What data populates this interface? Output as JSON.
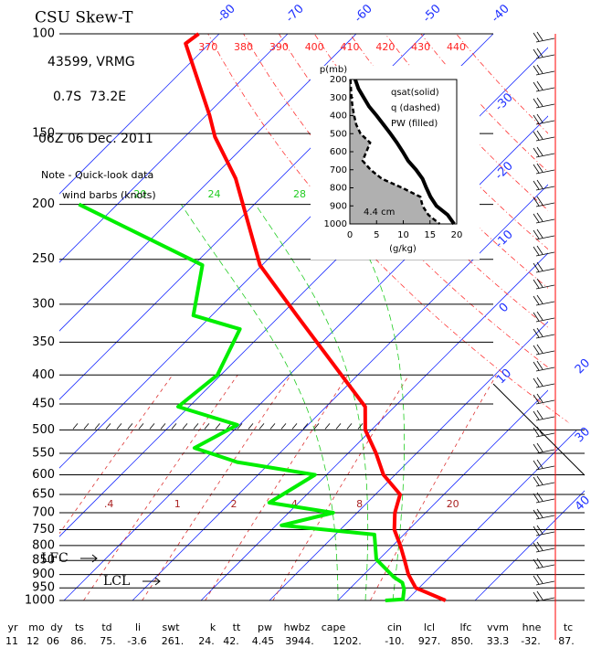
{
  "chart_data": [
    {
      "type": "skew-t",
      "title": "CSU Skew-T",
      "station": "43599, VRMG",
      "location": "0.7S  73.2E",
      "time": "06Z 06 Dec. 2011",
      "note": "Note - Quick-look data",
      "note2": "wind barbs (knots)",
      "lfc_label": "LFC",
      "lcl_label": "LCL",
      "log_y": true,
      "ylim": [
        100,
        1000
      ],
      "yticks": [
        100,
        150,
        200,
        250,
        300,
        350,
        400,
        450,
        500,
        550,
        600,
        650,
        700,
        750,
        800,
        850,
        900,
        950,
        1000
      ],
      "isotherms": [
        -80,
        -70,
        -60,
        -50,
        -40,
        -30,
        -20,
        -10,
        0,
        10,
        20,
        30,
        40
      ],
      "dry_adiabats": [
        370,
        380,
        390,
        400,
        410,
        420,
        430,
        440
      ],
      "mixing_ratios": [
        {
          "value": 0.4,
          "label": ".4"
        },
        1,
        2,
        4,
        8,
        20
      ],
      "moist_adiabats": [
        20,
        24,
        28
      ],
      "series": [
        {
          "color": "#ff0000",
          "pressure": [
            100,
            104,
            139,
            152,
            180,
            256,
            314,
            455,
            500,
            550,
            600,
            650,
            700,
            750,
            800,
            850,
            900,
            950,
            1000
          ],
          "values": [
            -83.0,
            -83.5,
            -69.6,
            -65.6,
            -56.5,
            -40.3,
            -27.6,
            -4.3,
            -0.9,
            4.1,
            8.3,
            13.6,
            15.5,
            17.9,
            21.1,
            23.9,
            26.5,
            29.5,
            35.7
          ]
        },
        {
          "color": "#00ee00",
          "pressure": [
            200,
            256,
            314,
            332,
            400,
            455,
            490,
            538,
            570,
            600,
            672,
            700,
            737,
            765,
            846,
            910,
            930,
            955,
            995,
            1000
          ],
          "values": [
            -75.6,
            -48.7,
            -42.7,
            -33.9,
            -30.5,
            -31.6,
            -20.3,
            -23.2,
            -14.9,
            -1.7,
            -4.3,
            6.5,
            0.8,
            15.7,
            19.6,
            24.8,
            26.8,
            28.0,
            29.3,
            26.9
          ]
        }
      ]
    },
    {
      "type": "line",
      "ylabel": "p(mb)",
      "xlabel": "(g/kg)",
      "annotation": "4.4 cm",
      "xlim": [
        0,
        20
      ],
      "xticks": [
        0,
        5,
        10,
        15,
        20
      ],
      "ylim": [
        1000,
        200
      ],
      "yticks": [
        200,
        300,
        400,
        500,
        600,
        700,
        800,
        900,
        1000
      ],
      "pressure": [
        200,
        250,
        300,
        350,
        400,
        450,
        500,
        550,
        600,
        650,
        700,
        750,
        800,
        850,
        900,
        950,
        1000
      ],
      "series": [
        {
          "name": "qsat(solid)",
          "color": "#000000",
          "dash": false,
          "fill": false,
          "values": [
            1.0,
            1.6,
            2.6,
            3.6,
            5.0,
            6.3,
            7.6,
            8.8,
            9.9,
            10.9,
            12.4,
            13.6,
            14.3,
            15.1,
            16.2,
            18.3,
            19.5
          ]
        },
        {
          "name": "q (dashed)",
          "color": "#000000",
          "dash": true,
          "fill": false,
          "values": [
            0.1,
            0.2,
            0.3,
            0.5,
            0.8,
            1.2,
            2.0,
            3.8,
            3.1,
            2.4,
            3.9,
            6.0,
            9.8,
            13.2,
            13.6,
            14.7,
            16.8
          ]
        },
        {
          "name": "PW (filled)",
          "color": "#b0b0b0",
          "dash": false,
          "fill": true
        }
      ]
    }
  ],
  "table": {
    "header": [
      "yr",
      "mo",
      "dy",
      "ts",
      "td",
      "li",
      "swt",
      "k",
      "tt",
      "pw",
      "hwbz",
      "cape",
      "cin",
      "lcl",
      "lfc",
      "vvm",
      "hne",
      "tc"
    ],
    "row": [
      "11",
      "12",
      "06",
      "86.",
      "75.",
      "-3.6",
      "261.",
      "24.",
      "42.",
      "4.45",
      "3944.",
      "1202.",
      "-10.",
      "927.",
      "850.",
      "33.3",
      "-32.",
      "87."
    ]
  }
}
